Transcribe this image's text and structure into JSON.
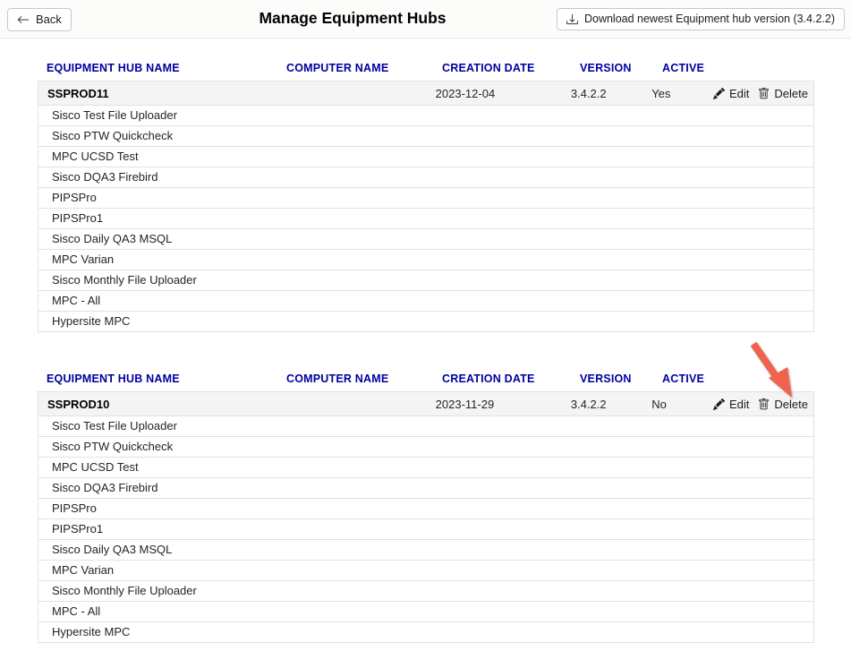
{
  "topbar": {
    "back_label": "Back",
    "title": "Manage Equipment Hubs",
    "download_label": "Download newest Equipment hub version (3.4.2.2)"
  },
  "table": {
    "columns": [
      "EQUIPMENT HUB NAME",
      "COMPUTER NAME",
      "CREATION DATE",
      "VERSION",
      "ACTIVE"
    ],
    "actions": {
      "edit_label": "Edit",
      "delete_label": "Delete"
    }
  },
  "hubs": [
    {
      "name": "SSPROD11",
      "computer_name": "",
      "creation_date": "2023-12-04",
      "version": "3.4.2.2",
      "active": "Yes",
      "equipment": [
        "Sisco Test File Uploader",
        "Sisco PTW Quickcheck",
        "MPC UCSD Test",
        "Sisco DQA3 Firebird",
        "PIPSPro",
        "PIPSPro1",
        "Sisco Daily QA3 MSQL",
        "MPC Varian",
        "Sisco Monthly File Uploader",
        "MPC - All",
        "Hypersite MPC"
      ]
    },
    {
      "name": "SSPROD10",
      "computer_name": "",
      "creation_date": "2023-11-29",
      "version": "3.4.2.2",
      "active": "No",
      "equipment": [
        "Sisco Test File Uploader",
        "Sisco PTW Quickcheck",
        "MPC UCSD Test",
        "Sisco DQA3 Firebird",
        "PIPSPro",
        "PIPSPro1",
        "Sisco Daily QA3 MSQL",
        "MPC Varian",
        "Sisco Monthly File Uploader",
        "MPC - All",
        "Hypersite MPC"
      ]
    }
  ],
  "annotation": {
    "shape": "arrow",
    "color": "#f0634e",
    "points_at": "delete action of SSPROD10 row"
  },
  "colors": {
    "header_text": "#0000a0",
    "row_highlight": "#f4f4f5",
    "table_border": "#dee2e6",
    "arrow": "#f0634e"
  }
}
